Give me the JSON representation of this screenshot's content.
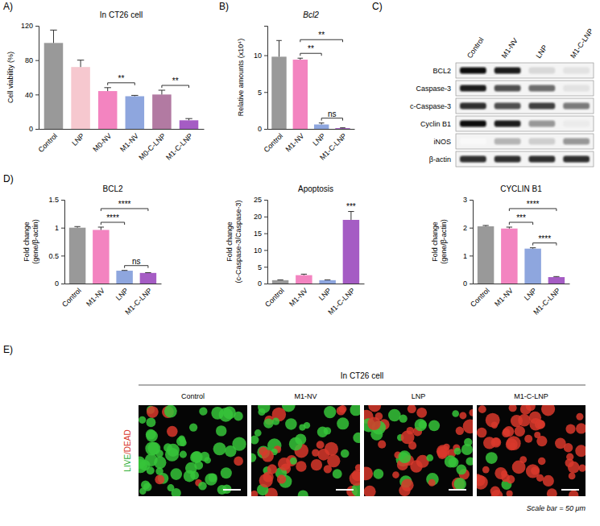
{
  "panels": [
    "A)",
    "B)",
    "C)",
    "D)",
    "E)"
  ],
  "chart_data": [
    {
      "type": "bar",
      "title": "In CT26 cell",
      "ylabel": "Cell viability (%)",
      "categories": [
        "Control",
        "LNP",
        "M0-NV",
        "M1-NV",
        "M0-C-LNP",
        "M1-C-LNP"
      ],
      "values": [
        100,
        72,
        44,
        38,
        40,
        10
      ],
      "errors": [
        15,
        8,
        4,
        1,
        5,
        2
      ],
      "colors": [
        "#999999",
        "#f6c8cf",
        "#f384c0",
        "#8ea6de",
        "#b27aa2",
        "#a55cc4"
      ],
      "ylim": [
        0,
        120
      ],
      "yticks": [
        0,
        40,
        80,
        120
      ],
      "annotations": [
        {
          "text": "**",
          "from": 2,
          "to": 3
        },
        {
          "text": "**",
          "from": 4,
          "to": 5
        }
      ]
    },
    {
      "type": "bar",
      "title": "Bcl2",
      "ylabel": "Relative amounts (x10⁴)",
      "categories": [
        "Control",
        "M1-NV",
        "LNP",
        "M1-C-LNP"
      ],
      "values": [
        9.8,
        9.4,
        0.6,
        0.1
      ],
      "errors": [
        2.2,
        0.2,
        0.2,
        0.05
      ],
      "colors": [
        "#999999",
        "#f384c0",
        "#8ea6de",
        "#a55cc4"
      ],
      "ylim": [
        0,
        14
      ],
      "yticks": [
        0,
        5,
        10
      ],
      "annotations": [
        {
          "text": "ns",
          "from": 2,
          "to": 3
        },
        {
          "text": "**",
          "from": 1,
          "to": 2
        },
        {
          "text": "**",
          "from": 1,
          "to": 3
        }
      ]
    },
    {
      "type": "bar",
      "title": "BCL2",
      "ylabel": [
        "Fold change",
        "(gene/β-actin)"
      ],
      "categories": [
        "Control",
        "M1-NV",
        "LNP",
        "M1-C-LNP"
      ],
      "values": [
        1.0,
        0.96,
        0.23,
        0.19
      ],
      "errors": [
        0.02,
        0.05,
        0.005,
        0.005
      ],
      "colors": [
        "#999999",
        "#f384c0",
        "#8ea6de",
        "#a55cc4"
      ],
      "ylim": [
        0,
        1.5
      ],
      "yticks": [
        0,
        0.5,
        1,
        1.5
      ],
      "annotations": [
        {
          "text": "ns",
          "from": 2,
          "to": 3
        },
        {
          "text": "****",
          "from": 1,
          "to": 2
        },
        {
          "text": "****",
          "from": 1,
          "to": 3
        }
      ]
    },
    {
      "type": "bar",
      "title": "Apoptosis",
      "ylabel": [
        "Fold change",
        "(c-Caspase-3/Caspase-3)"
      ],
      "categories": [
        "Control",
        "M1-NV",
        "LNP",
        "M1-C-LNP"
      ],
      "values": [
        1,
        2.5,
        1,
        19
      ],
      "errors": [
        0.1,
        0.3,
        0.1,
        2.5
      ],
      "colors": [
        "#999999",
        "#f384c0",
        "#8ea6de",
        "#a55cc4"
      ],
      "ylim": [
        0,
        25
      ],
      "yticks": [
        0,
        5,
        10,
        15,
        20,
        25
      ],
      "annotations": [
        {
          "text": "***",
          "from": 3,
          "to": 3
        }
      ]
    },
    {
      "type": "bar",
      "title": "CYCLIN B1",
      "ylabel": [
        "Fold change",
        "(gene/β-actin)"
      ],
      "categories": [
        "Control",
        "M1-NV",
        "LNP",
        "M1-C-LNP"
      ],
      "values": [
        2.05,
        1.97,
        1.25,
        0.23
      ],
      "errors": [
        0.03,
        0.05,
        0.03,
        0.02
      ],
      "colors": [
        "#999999",
        "#f384c0",
        "#8ea6de",
        "#a55cc4"
      ],
      "ylim": [
        0,
        3
      ],
      "yticks": [
        0,
        1,
        2,
        3
      ],
      "annotations": [
        {
          "text": "****",
          "from": 2,
          "to": 3
        },
        {
          "text": "***",
          "from": 1,
          "to": 2
        },
        {
          "text": "****",
          "from": 1,
          "to": 3
        }
      ]
    }
  ],
  "blot": {
    "lanes": [
      "Control",
      "M1-NV",
      "LNP",
      "M1-C-LNP"
    ],
    "rows": [
      {
        "name": "BCL2",
        "intensity": [
          0.95,
          0.9,
          0.25,
          0.2
        ]
      },
      {
        "name": "Caspase-3",
        "intensity": [
          0.9,
          0.75,
          0.65,
          0.2
        ]
      },
      {
        "name": "c-Caspase-3",
        "intensity": [
          0.85,
          0.75,
          0.8,
          0.6
        ]
      },
      {
        "name": "Cyclin B1",
        "intensity": [
          0.95,
          0.9,
          0.5,
          0.15
        ]
      },
      {
        "name": "iNOS",
        "intensity": [
          0.05,
          0.4,
          0.3,
          0.5
        ]
      },
      {
        "name": "β-actin",
        "intensity": [
          0.85,
          0.85,
          0.85,
          0.85
        ]
      }
    ]
  },
  "micrographs": {
    "title": "In CT26 cell",
    "labels": [
      "Control",
      "M1-NV",
      "LNP",
      "M1-C-LNP"
    ],
    "live_fraction": [
      0.85,
      0.45,
      0.35,
      0.02
    ],
    "stain": [
      "LIVE",
      "/DEAD"
    ],
    "scale_note": "Scale bar = 50 μm"
  }
}
